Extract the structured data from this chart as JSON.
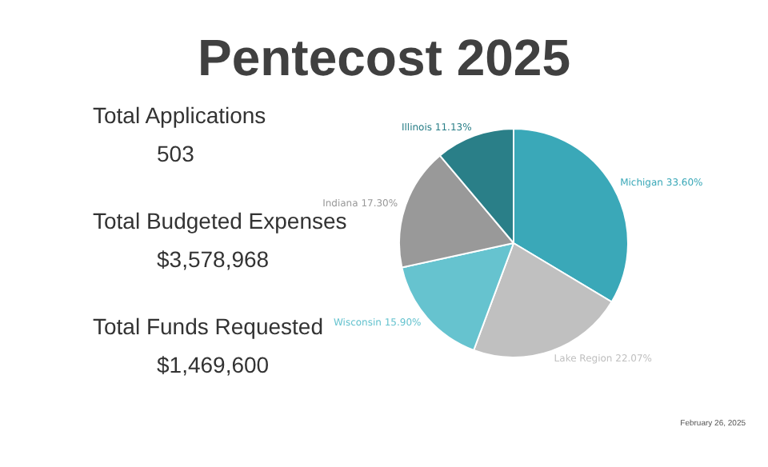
{
  "chart_data": {
    "type": "pie",
    "title": "Pentecost 2025",
    "categories": [
      "Michigan",
      "Lake Region",
      "Wisconsin",
      "Indiana",
      "Illinois"
    ],
    "values": [
      33.6,
      22.07,
      15.9,
      17.3,
      11.13
    ],
    "colors": [
      "#3aa8b8",
      "#c0c0c0",
      "#66c3cf",
      "#999999",
      "#2a7f88"
    ],
    "value_labels": [
      "33.60%",
      "22.07%",
      "15.90%",
      "17.30%",
      "11.13%"
    ],
    "legend": false,
    "annotations": [
      "Total Applications",
      "503",
      "Total Budgeted Expenses",
      "$3,578,968",
      "Total Funds Requested",
      "$1,469,600",
      "February 26, 2025"
    ]
  }
}
